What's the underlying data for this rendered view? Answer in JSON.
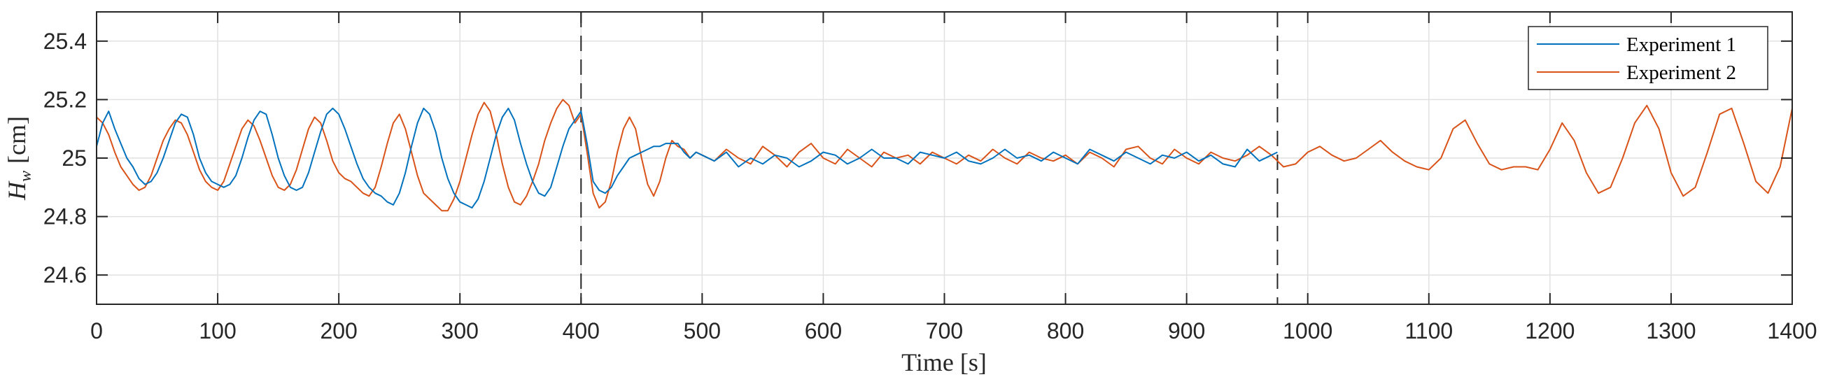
{
  "chart_data": {
    "type": "line",
    "title": "",
    "xlabel": "Time [s]",
    "ylabel_main": "H",
    "ylabel_sub": "w",
    "ylabel_unit": "[cm]",
    "xlim": [
      0,
      1400
    ],
    "ylim": [
      24.5,
      25.5
    ],
    "xticks": [
      0,
      100,
      200,
      300,
      400,
      500,
      600,
      700,
      800,
      900,
      1000,
      1100,
      1200,
      1300,
      1400
    ],
    "xtick_labels": [
      "0",
      "100",
      "200",
      "300",
      "400",
      "500",
      "600",
      "700",
      "800",
      "900",
      "1000",
      "1100",
      "1200",
      "1300",
      "1400"
    ],
    "yticks": [
      24.6,
      24.8,
      25.0,
      25.2,
      25.4
    ],
    "ytick_labels": [
      "24.6",
      "24.8",
      "25",
      "25.2",
      "25.4"
    ],
    "grid": true,
    "legend_position": "top-right",
    "vlines": [
      400,
      975
    ],
    "series": [
      {
        "name": "Experiment 1",
        "color": "#0072BD",
        "x": [
          0,
          5,
          10,
          15,
          20,
          25,
          30,
          35,
          40,
          45,
          50,
          55,
          60,
          65,
          70,
          75,
          80,
          85,
          90,
          95,
          100,
          105,
          110,
          115,
          120,
          125,
          130,
          135,
          140,
          145,
          150,
          155,
          160,
          165,
          170,
          175,
          180,
          185,
          190,
          195,
          200,
          205,
          210,
          215,
          220,
          225,
          230,
          235,
          240,
          245,
          250,
          255,
          260,
          265,
          270,
          275,
          280,
          285,
          290,
          295,
          300,
          305,
          310,
          315,
          320,
          325,
          330,
          335,
          340,
          345,
          350,
          355,
          360,
          365,
          370,
          375,
          380,
          385,
          390,
          395,
          400,
          405,
          410,
          415,
          420,
          425,
          430,
          435,
          440,
          445,
          450,
          455,
          460,
          465,
          470,
          475,
          480,
          485,
          490,
          495,
          500,
          510,
          520,
          530,
          540,
          550,
          560,
          570,
          580,
          590,
          600,
          610,
          620,
          630,
          640,
          650,
          660,
          670,
          680,
          690,
          700,
          710,
          720,
          730,
          740,
          750,
          760,
          770,
          780,
          790,
          800,
          810,
          820,
          830,
          840,
          850,
          860,
          870,
          880,
          890,
          900,
          910,
          920,
          930,
          940,
          950,
          960,
          970,
          975
        ],
        "values": [
          25.04,
          25.12,
          25.16,
          25.1,
          25.05,
          25.0,
          24.97,
          24.93,
          24.91,
          24.92,
          24.95,
          25.0,
          25.06,
          25.12,
          25.15,
          25.14,
          25.08,
          25.0,
          24.95,
          24.92,
          24.91,
          24.9,
          24.91,
          24.94,
          25.0,
          25.07,
          25.13,
          25.16,
          25.15,
          25.08,
          25.0,
          24.94,
          24.9,
          24.89,
          24.9,
          24.95,
          25.02,
          25.09,
          25.15,
          25.17,
          25.15,
          25.1,
          25.04,
          24.98,
          24.93,
          24.9,
          24.88,
          24.87,
          24.85,
          24.84,
          24.88,
          24.95,
          25.04,
          25.12,
          25.17,
          25.15,
          25.09,
          25.0,
          24.93,
          24.88,
          24.85,
          24.84,
          24.83,
          24.86,
          24.92,
          25.0,
          25.08,
          25.14,
          25.17,
          25.13,
          25.05,
          24.98,
          24.92,
          24.88,
          24.87,
          24.9,
          24.97,
          25.04,
          25.1,
          25.13,
          25.16,
          25.05,
          24.92,
          24.89,
          24.88,
          24.9,
          24.94,
          24.97,
          25.0,
          25.01,
          25.02,
          25.03,
          25.04,
          25.04,
          25.05,
          25.05,
          25.05,
          25.02,
          25.0,
          25.02,
          25.01,
          24.99,
          25.02,
          24.97,
          25.0,
          24.98,
          25.01,
          25.0,
          24.97,
          24.99,
          25.02,
          25.01,
          24.98,
          25.0,
          25.03,
          25.0,
          25.0,
          24.98,
          25.02,
          25.01,
          25.0,
          25.02,
          24.99,
          24.98,
          25.0,
          25.03,
          25.0,
          25.01,
          24.99,
          25.02,
          25.0,
          24.98,
          25.03,
          25.01,
          24.99,
          25.02,
          25.0,
          24.98,
          25.01,
          25.0,
          25.02,
          24.99,
          25.01,
          24.98,
          24.97,
          25.03,
          24.99,
          25.01,
          25.02
        ]
      },
      {
        "name": "Experiment 2",
        "color": "#D95319",
        "x": [
          0,
          5,
          10,
          15,
          20,
          25,
          30,
          35,
          40,
          45,
          50,
          55,
          60,
          65,
          70,
          75,
          80,
          85,
          90,
          95,
          100,
          105,
          110,
          115,
          120,
          125,
          130,
          135,
          140,
          145,
          150,
          155,
          160,
          165,
          170,
          175,
          180,
          185,
          190,
          195,
          200,
          205,
          210,
          215,
          220,
          225,
          230,
          235,
          240,
          245,
          250,
          255,
          260,
          265,
          270,
          275,
          280,
          285,
          290,
          295,
          300,
          305,
          310,
          315,
          320,
          325,
          330,
          335,
          340,
          345,
          350,
          355,
          360,
          365,
          370,
          375,
          380,
          385,
          390,
          395,
          400,
          405,
          410,
          415,
          420,
          425,
          430,
          435,
          440,
          445,
          450,
          455,
          460,
          465,
          470,
          475,
          480,
          485,
          490,
          495,
          500,
          510,
          520,
          530,
          540,
          550,
          560,
          570,
          580,
          590,
          600,
          610,
          620,
          630,
          640,
          650,
          660,
          670,
          680,
          690,
          700,
          710,
          720,
          730,
          740,
          750,
          760,
          770,
          780,
          790,
          800,
          810,
          820,
          830,
          840,
          850,
          860,
          870,
          880,
          890,
          900,
          910,
          920,
          930,
          940,
          950,
          960,
          970,
          980,
          990,
          1000,
          1010,
          1020,
          1030,
          1040,
          1050,
          1060,
          1070,
          1080,
          1090,
          1100,
          1110,
          1120,
          1130,
          1140,
          1150,
          1160,
          1170,
          1180,
          1190,
          1200,
          1210,
          1220,
          1230,
          1240,
          1250,
          1260,
          1270,
          1280,
          1290,
          1300,
          1310,
          1320,
          1330,
          1340,
          1350,
          1360,
          1370,
          1380,
          1390,
          1400
        ],
        "values": [
          25.14,
          25.12,
          25.08,
          25.02,
          24.97,
          24.94,
          24.91,
          24.89,
          24.9,
          24.94,
          25.0,
          25.06,
          25.1,
          25.13,
          25.12,
          25.08,
          25.02,
          24.96,
          24.92,
          24.9,
          24.89,
          24.92,
          24.98,
          25.04,
          25.1,
          25.13,
          25.11,
          25.06,
          25.0,
          24.94,
          24.9,
          24.89,
          24.91,
          24.96,
          25.03,
          25.1,
          25.14,
          25.12,
          25.06,
          24.99,
          24.95,
          24.93,
          24.92,
          24.9,
          24.88,
          24.87,
          24.9,
          24.97,
          25.05,
          25.12,
          25.15,
          25.1,
          25.02,
          24.94,
          24.88,
          24.86,
          24.84,
          24.82,
          24.82,
          24.86,
          24.92,
          25.0,
          25.08,
          25.15,
          25.19,
          25.16,
          25.08,
          24.98,
          24.9,
          24.85,
          24.84,
          24.87,
          24.92,
          24.98,
          25.06,
          25.12,
          25.17,
          25.2,
          25.18,
          25.12,
          25.15,
          25.02,
          24.88,
          24.83,
          24.85,
          24.92,
          25.02,
          25.1,
          25.14,
          25.1,
          25.0,
          24.91,
          24.87,
          24.92,
          25.0,
          25.06,
          25.04,
          25.03,
          25.0,
          25.02,
          25.01,
          24.99,
          25.03,
          25.0,
          24.98,
          25.04,
          25.01,
          24.97,
          25.02,
          25.05,
          25.0,
          24.98,
          25.03,
          25.0,
          24.97,
          25.02,
          25.0,
          25.01,
          24.98,
          25.02,
          25.0,
          24.98,
          25.01,
          24.99,
          25.03,
          25.0,
          24.98,
          25.02,
          25.0,
          24.99,
          25.01,
          24.98,
          25.02,
          25.0,
          24.97,
          25.03,
          25.04,
          25.0,
          24.98,
          25.03,
          25.0,
          24.98,
          25.02,
          25.0,
          24.99,
          25.01,
          25.04,
          25.01,
          24.97,
          24.98,
          25.02,
          25.04,
          25.01,
          24.99,
          25.0,
          25.03,
          25.06,
          25.02,
          24.99,
          24.97,
          24.96,
          25.0,
          25.1,
          25.13,
          25.05,
          24.98,
          24.96,
          24.97,
          24.97,
          24.96,
          25.03,
          25.12,
          25.06,
          24.95,
          24.88,
          24.9,
          25.0,
          25.12,
          25.18,
          25.1,
          24.95,
          24.87,
          24.9,
          25.02,
          25.15,
          25.17,
          25.05,
          24.92,
          24.88,
          24.97,
          25.17
        ]
      }
    ]
  }
}
